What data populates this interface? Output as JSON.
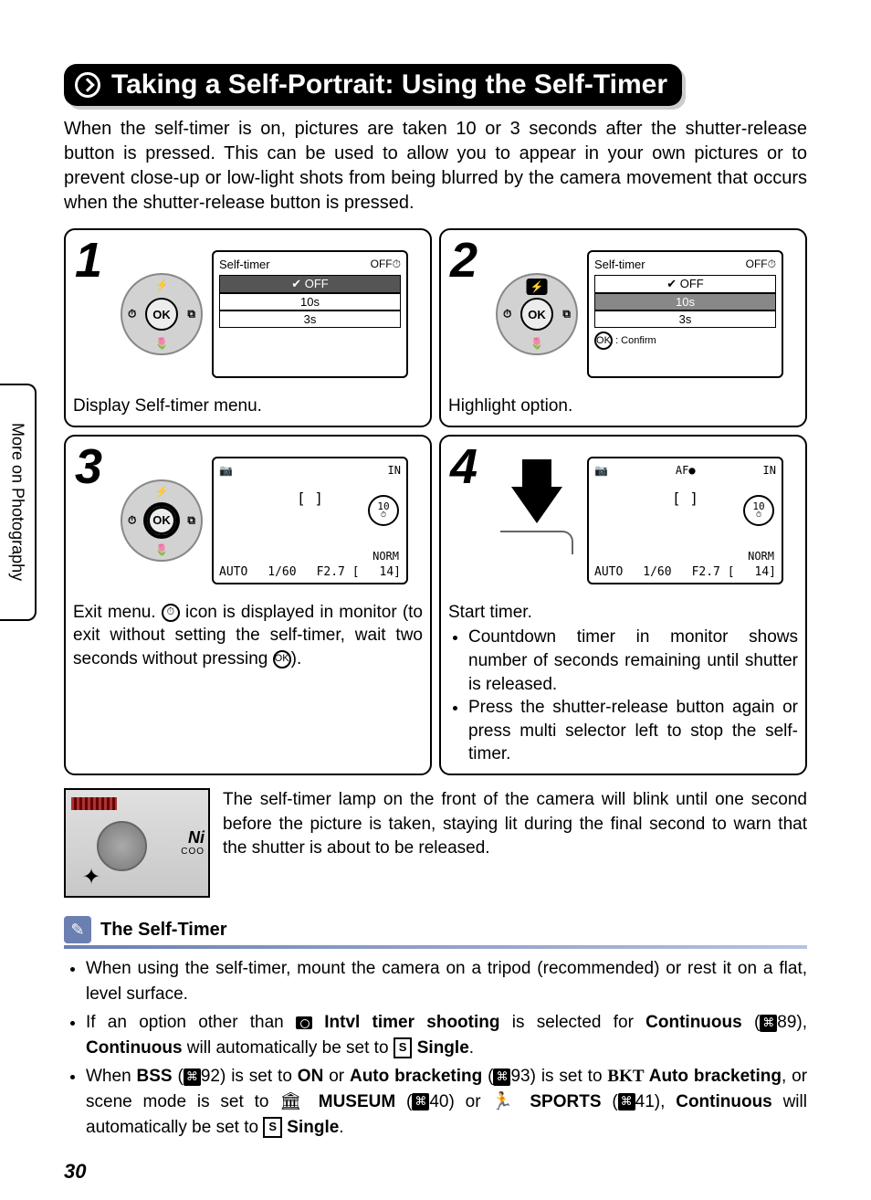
{
  "colors": {
    "accent": "#6b7fb0",
    "text": "#000000",
    "bg": "#ffffff",
    "lcdGrey": "#888888"
  },
  "typography": {
    "body_fontsize": 19,
    "title_fontsize": 30,
    "stepnum_fontsize": 54
  },
  "sideTab": "More on Photography",
  "title": "Taking a Self-Portrait: Using the Self-Timer",
  "intro": "When the self-timer is on, pictures are taken 10 or 3 seconds after the shutter-release button is pressed. This can be used to allow you to appear in your own pictures or to prevent close-up or low-light shots from being blurred by the camera movement that occurs when the shutter-release button is pressed.",
  "lcdMenu": {
    "header": "Self-timer",
    "offIcon": "OFF⏱",
    "rows": [
      "OFF",
      "10s",
      "3s"
    ],
    "confirm": ": Confirm"
  },
  "lcdPreview": {
    "cameraIcon": "📷",
    "internalIcon": "IN",
    "center": "[  ]",
    "timerBadge": "10",
    "norm": "NORM",
    "af": "AF●",
    "bottom": [
      "AUTO",
      "1/60",
      "F2.7 [",
      "14]"
    ]
  },
  "steps": {
    "s1": {
      "num": "1",
      "caption": "Display Self-timer menu."
    },
    "s2": {
      "num": "2",
      "caption": "Highlight option."
    },
    "s3": {
      "num": "3",
      "caption_a": "Exit menu. ",
      "caption_b": " icon is displayed in monitor (to exit without setting the self-timer, wait two seconds without pressing ",
      "caption_c": ")."
    },
    "s4": {
      "num": "4",
      "caption": "Start timer.",
      "bullets": [
        "Countdown timer in monitor shows number of seconds remaining until shutter is released.",
        "Press the shutter-release button again or press multi selector left to stop the self-timer."
      ]
    }
  },
  "lampText": "The self-timer lamp on the front of the camera will blink until one second before the picture is taken, staying lit during the final second to warn that the shutter is about to be released.",
  "lampBrand": "Ni",
  "lampSub": "COO",
  "note": {
    "title": "The Self-Timer",
    "items": {
      "i1": "When using the self-timer, mount the camera on a tripod (recommended) or rest it on a flat, level surface.",
      "i2_a": "If an option other than ",
      "i2_b": " Intvl timer shooting",
      "i2_c": " is selected for ",
      "i2_d": "Continuous",
      "i2_e": " (",
      "i2_f": "89), ",
      "i2_g": "Continuous",
      "i2_h": " will automatically be set to ",
      "i2_i": " Single",
      "i2_j": ".",
      "i3_a": "When ",
      "i3_b": "BSS",
      "i3_c": " (",
      "i3_d": "92) is set to ",
      "i3_e": "ON",
      "i3_f": " or ",
      "i3_g": "Auto bracketing",
      "i3_h": " (",
      "i3_i": "93) is set to ",
      "i3_j": " Auto bracketing",
      "i3_k": ", or scene mode is set to ",
      "i3_l": " MUSEUM",
      "i3_m": " (",
      "i3_n": "40) or ",
      "i3_o": " SPORTS",
      "i3_p": " (",
      "i3_q": "41), ",
      "i3_r": "Continuous",
      "i3_s": " will automatically be set to ",
      "i3_t": " Single",
      "i3_u": "."
    }
  },
  "pageNumber": "30",
  "icons": {
    "ok": "OK",
    "bkt": "BKT",
    "ref": "⌘",
    "s": "S",
    "museum": "🏛",
    "sports": "🏃"
  }
}
